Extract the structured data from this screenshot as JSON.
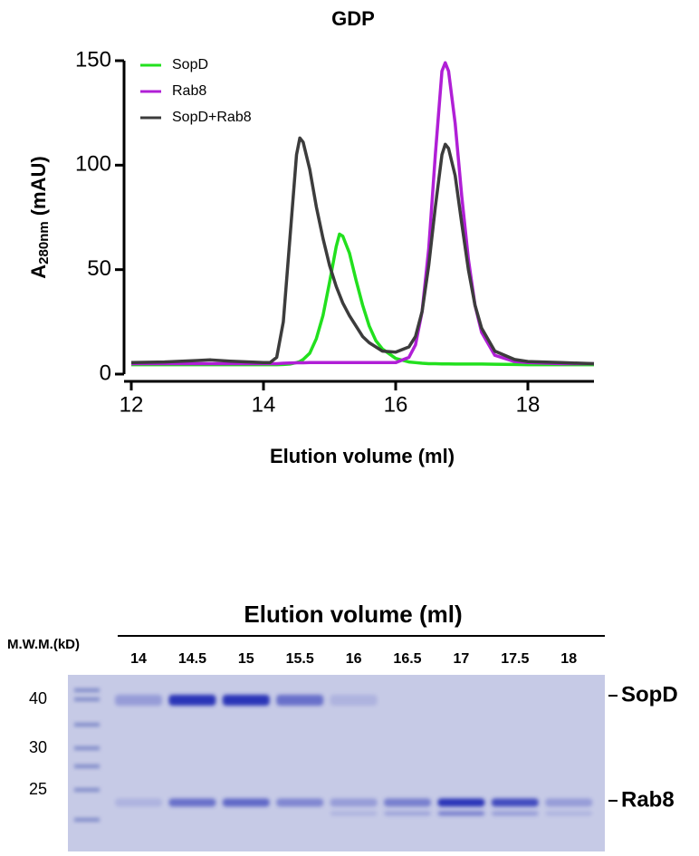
{
  "chart_data": {
    "type": "line",
    "title": "GDP",
    "x_label": "Elution volume (ml)",
    "y_label": {
      "text": "A",
      "subscript": "280nm",
      "suffix": "(mAU)"
    },
    "x": [
      12,
      12.5,
      13,
      13.2,
      13.5,
      14,
      14.1,
      14.2,
      14.3,
      14.4,
      14.5,
      14.55,
      14.6,
      14.7,
      14.8,
      14.9,
      15,
      15.1,
      15.15,
      15.2,
      15.3,
      15.4,
      15.5,
      15.6,
      15.7,
      15.8,
      16,
      16.2,
      16.3,
      16.4,
      16.5,
      16.6,
      16.7,
      16.75,
      16.8,
      16.9,
      17,
      17.1,
      17.2,
      17.3,
      17.5,
      17.8,
      18,
      18.5,
      19
    ],
    "series": [
      {
        "name": "SopD",
        "color": "#22e01e",
        "values": [
          4.5,
          4.5,
          4.5,
          4.5,
          4.5,
          4.5,
          4.5,
          4.5,
          4.6,
          4.8,
          5.5,
          6,
          7,
          10,
          17,
          28,
          44,
          61,
          67,
          66,
          58,
          45,
          33,
          23,
          16,
          12,
          7.5,
          5.8,
          5.5,
          5.2,
          5,
          5,
          4.9,
          4.9,
          4.9,
          4.8,
          4.8,
          4.8,
          4.8,
          4.8,
          4.7,
          4.6,
          4.5,
          4.5,
          4.5
        ]
      },
      {
        "name": "Rab8",
        "color": "#b01fd6",
        "values": [
          5,
          5,
          5,
          5,
          5,
          5,
          5,
          5,
          5.2,
          5.3,
          5.4,
          5.4,
          5.4,
          5.5,
          5.5,
          5.5,
          5.5,
          5.5,
          5.5,
          5.5,
          5.5,
          5.5,
          5.5,
          5.5,
          5.5,
          5.5,
          5.5,
          8,
          14,
          30,
          60,
          105,
          145,
          149,
          145,
          120,
          85,
          55,
          33,
          20,
          9,
          6,
          5.5,
          5,
          5
        ]
      },
      {
        "name": "SopD+Rab8",
        "color": "#3c3c3c",
        "values": [
          5.5,
          5.8,
          6.5,
          6.8,
          6.2,
          5.5,
          5.5,
          8,
          25,
          65,
          105,
          113,
          111,
          98,
          80,
          65,
          52,
          42,
          38,
          34,
          28,
          23,
          18,
          15,
          13,
          11,
          10.5,
          13,
          18,
          30,
          52,
          80,
          105,
          110,
          108,
          95,
          72,
          50,
          33,
          22,
          11,
          7,
          6,
          5.5,
          5
        ]
      }
    ],
    "xlim": [
      12,
      19
    ],
    "xticks": [
      12,
      14,
      16,
      18
    ],
    "ylim": [
      0,
      150
    ],
    "yticks": [
      0,
      50,
      100,
      150
    ],
    "legend": "top-left"
  },
  "gel": {
    "title": "Elution volume (ml)",
    "marker_label": "M.W.M.(kD)",
    "lanes": [
      "14",
      "14.5",
      "15",
      "15.5",
      "16",
      "16.5",
      "17",
      "17.5",
      "18"
    ],
    "marker_sizes": [
      "40",
      "30",
      "25"
    ],
    "band_labels": [
      "SopD",
      "Rab8"
    ]
  }
}
